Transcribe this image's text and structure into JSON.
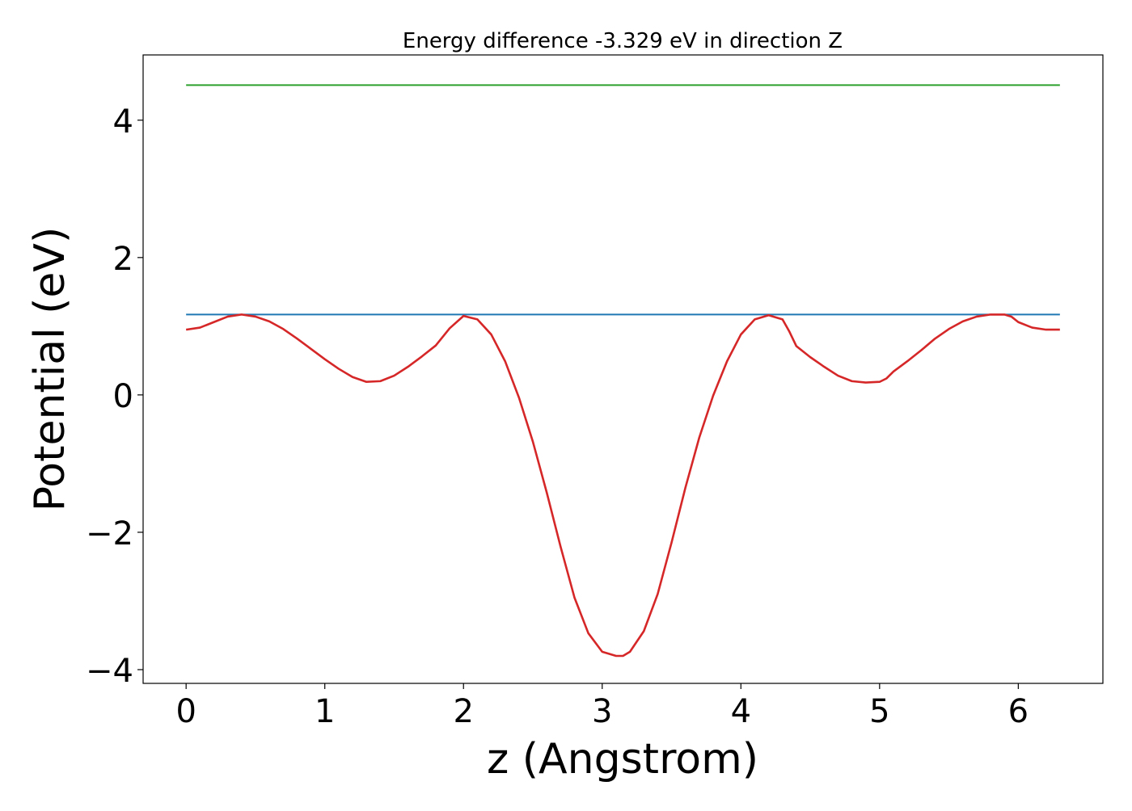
{
  "chart_data": {
    "type": "line",
    "title": "Energy difference -3.329 eV in direction Z",
    "xlabel": "z (Angstrom)",
    "ylabel": "Potential (eV)",
    "xlim": [
      -0.31,
      6.61
    ],
    "ylim": [
      -4.2,
      4.95
    ],
    "xticks": [
      0,
      1,
      2,
      3,
      4,
      5,
      6
    ],
    "xtick_labels": [
      "0",
      "1",
      "2",
      "3",
      "4",
      "5",
      "6"
    ],
    "yticks": [
      -4,
      -2,
      0,
      2,
      4
    ],
    "ytick_labels": [
      "−4",
      "−2",
      "0",
      "2",
      "4"
    ],
    "grid": false,
    "legend": "none",
    "series": [
      {
        "color": "#2ca02c",
        "x": [
          0,
          6.3
        ],
        "y": [
          4.51,
          4.51
        ]
      },
      {
        "color": "#1f77b4",
        "x": [
          0,
          6.3
        ],
        "y": [
          1.17,
          1.17
        ]
      },
      {
        "color": "#d62728",
        "x": [
          0,
          0.1,
          0.2,
          0.3,
          0.4,
          0.5,
          0.6,
          0.7,
          0.8,
          0.9,
          1.0,
          1.1,
          1.2,
          1.3,
          1.4,
          1.5,
          1.6,
          1.7,
          1.8,
          1.9,
          2.0,
          2.1,
          2.2,
          2.3,
          2.4,
          2.5,
          2.6,
          2.7,
          2.8,
          2.9,
          3.0,
          3.1,
          3.15,
          3.2,
          3.3,
          3.4,
          3.5,
          3.6,
          3.7,
          3.8,
          3.9,
          4.0,
          4.1,
          4.2,
          4.3,
          4.35,
          4.4,
          4.5,
          4.6,
          4.7,
          4.8,
          4.9,
          5.0,
          5.05,
          5.1,
          5.2,
          5.3,
          5.4,
          5.5,
          5.6,
          5.7,
          5.8,
          5.9,
          5.95,
          6.0,
          6.1,
          6.2,
          6.3
        ],
        "y": [
          0.95,
          0.98,
          1.06,
          1.14,
          1.17,
          1.14,
          1.07,
          0.96,
          0.82,
          0.67,
          0.52,
          0.38,
          0.26,
          0.19,
          0.2,
          0.28,
          0.41,
          0.56,
          0.72,
          0.97,
          1.15,
          1.1,
          0.88,
          0.49,
          -0.04,
          -0.68,
          -1.42,
          -2.21,
          -2.95,
          -3.47,
          -3.74,
          -3.8,
          -3.8,
          -3.74,
          -3.44,
          -2.9,
          -2.15,
          -1.35,
          -0.62,
          -0.01,
          0.49,
          0.88,
          1.1,
          1.16,
          1.1,
          0.92,
          0.71,
          0.55,
          0.41,
          0.28,
          0.2,
          0.18,
          0.19,
          0.24,
          0.34,
          0.49,
          0.65,
          0.82,
          0.96,
          1.07,
          1.14,
          1.17,
          1.17,
          1.14,
          1.06,
          0.98,
          0.95,
          0.95
        ]
      }
    ]
  }
}
